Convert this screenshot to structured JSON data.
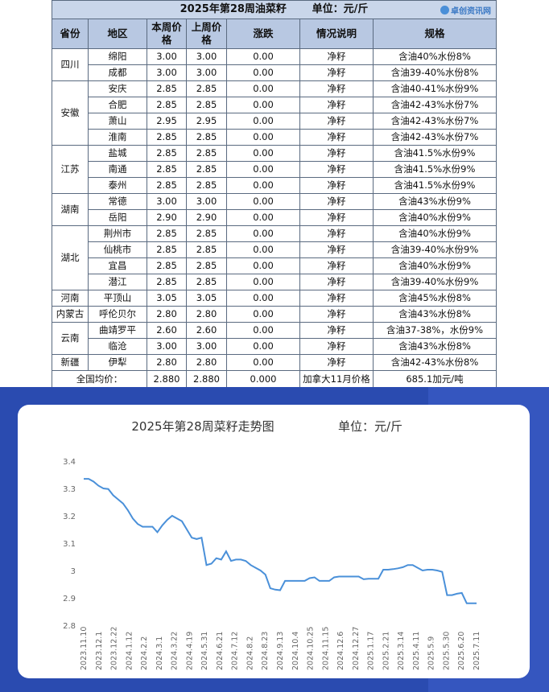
{
  "table": {
    "title": "2025年第28周油菜籽",
    "unit": "单位：元/斤",
    "logo_text": "卓创资讯网",
    "headers": [
      "省份",
      "地区",
      "本周价格",
      "上周价格",
      "涨跌",
      "情况说明",
      "规格"
    ],
    "groups": [
      {
        "province": "四川",
        "rows": [
          [
            "绵阳",
            "3.00",
            "3.00",
            "0.00",
            "净籽",
            "含油40%水份8%"
          ],
          [
            "成都",
            "3.00",
            "3.00",
            "0.00",
            "净籽",
            "含油39-40%水份8%"
          ]
        ]
      },
      {
        "province": "安徽",
        "rows": [
          [
            "安庆",
            "2.85",
            "2.85",
            "0.00",
            "净籽",
            "含油40-41%水份9%"
          ],
          [
            "合肥",
            "2.85",
            "2.85",
            "0.00",
            "净籽",
            "含油42-43%水份7%"
          ],
          [
            "萧山",
            "2.95",
            "2.95",
            "0.00",
            "净籽",
            "含油42-43%水份7%"
          ],
          [
            "淮南",
            "2.85",
            "2.85",
            "0.00",
            "净籽",
            "含油42-43%水份7%"
          ]
        ]
      },
      {
        "province": "江苏",
        "rows": [
          [
            "盐城",
            "2.85",
            "2.85",
            "0.00",
            "净籽",
            "含油41.5%水份9%"
          ],
          [
            "南通",
            "2.85",
            "2.85",
            "0.00",
            "净籽",
            "含油41.5%水份9%"
          ],
          [
            "泰州",
            "2.85",
            "2.85",
            "0.00",
            "净籽",
            "含油41.5%水份9%"
          ]
        ]
      },
      {
        "province": "湖南",
        "rows": [
          [
            "常德",
            "3.00",
            "3.00",
            "0.00",
            "净籽",
            "含油43%水份9%"
          ],
          [
            "岳阳",
            "2.90",
            "2.90",
            "0.00",
            "净籽",
            "含油40%水份9%"
          ]
        ]
      },
      {
        "province": "湖北",
        "rows": [
          [
            "荆州市",
            "2.85",
            "2.85",
            "0.00",
            "净籽",
            "含油40%水份9%"
          ],
          [
            "仙桃市",
            "2.85",
            "2.85",
            "0.00",
            "净籽",
            "含油39-40%水份9%"
          ],
          [
            "宜昌",
            "2.85",
            "2.85",
            "0.00",
            "净籽",
            "含油40%水份9%"
          ],
          [
            "潜江",
            "2.85",
            "2.85",
            "0.00",
            "净籽",
            "含油39-40%水份9%"
          ]
        ]
      },
      {
        "province": "河南",
        "rows": [
          [
            "平顶山",
            "3.05",
            "3.05",
            "0.00",
            "净籽",
            "含油45%水份8%"
          ]
        ]
      },
      {
        "province": "内蒙古",
        "rows": [
          [
            "呼伦贝尔",
            "2.80",
            "2.80",
            "0.00",
            "净籽",
            "含油43%水份8%"
          ]
        ]
      },
      {
        "province": "云南",
        "rows": [
          [
            "曲靖罗平",
            "2.60",
            "2.60",
            "0.00",
            "净籽",
            "含油37-38%，水份9%"
          ],
          [
            "临沧",
            "3.00",
            "3.00",
            "0.00",
            "净籽",
            "含油43%水份8%"
          ]
        ]
      },
      {
        "province": "新疆",
        "rows": [
          [
            "伊犁",
            "2.80",
            "2.80",
            "0.00",
            "净籽",
            "含油42-43%水份8%"
          ]
        ]
      }
    ],
    "footer": {
      "label": "全国均价：",
      "this_week": "2.880",
      "last_week": "2.880",
      "change": "0.000",
      "note": "加拿大11月价格",
      "spec": "685.1加元/吨"
    }
  },
  "chart_data": {
    "type": "line",
    "title": "2025年第28周菜籽走势图",
    "unit_label": "单位：元/斤",
    "ylim": [
      2.8,
      3.4
    ],
    "yticks": [
      "2.8",
      "2.9",
      "3",
      "3.1",
      "3.2",
      "3.3",
      "3.4"
    ],
    "series_color": "#4a90d9",
    "x_tick_labels": [
      "2023.11.10",
      "2023.12.1",
      "2023.12.22",
      "2024.1.12",
      "2024.2.2",
      "2024.3.1",
      "2024.3.22",
      "2024.4.19",
      "2024.5.31",
      "2024.6.21",
      "2024.7.12",
      "2024.8.2",
      "2024.8.23",
      "2024.9.13",
      "2024.10.4",
      "2024.10.25",
      "2024.11.15",
      "2024.12.6",
      "2024.12.27",
      "2025.1.17",
      "2025.2.21",
      "2025.3.14",
      "2025.4.11",
      "2025.5.9",
      "2025.5.30",
      "2025.6.20",
      "2025.7.11"
    ],
    "values": [
      3.335,
      3.335,
      3.325,
      3.31,
      3.3,
      3.298,
      3.275,
      3.26,
      3.245,
      3.22,
      3.19,
      3.17,
      3.16,
      3.16,
      3.16,
      3.14,
      3.165,
      3.185,
      3.2,
      3.19,
      3.18,
      3.15,
      3.12,
      3.115,
      3.12,
      3.02,
      3.025,
      3.045,
      3.04,
      3.07,
      3.035,
      3.04,
      3.04,
      3.035,
      3.02,
      3.01,
      3.0,
      2.985,
      2.935,
      2.93,
      2.928,
      2.962,
      2.962,
      2.962,
      2.962,
      2.962,
      2.972,
      2.975,
      2.962,
      2.962,
      2.962,
      2.975,
      2.978,
      2.978,
      2.978,
      2.978,
      2.978,
      2.968,
      2.97,
      2.97,
      2.97,
      3.003,
      3.003,
      3.005,
      3.008,
      3.012,
      3.02,
      3.02,
      3.01,
      3.0,
      3.003,
      3.003,
      3.0,
      2.995,
      2.91,
      2.91,
      2.915,
      2.918,
      2.88,
      2.88,
      2.88
    ]
  }
}
